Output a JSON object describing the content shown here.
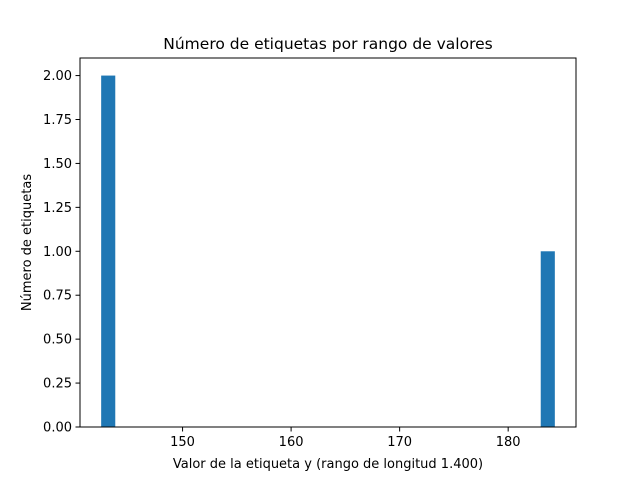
{
  "chart_data": {
    "type": "bar",
    "title": "Número de etiquetas por rango de valores",
    "xlabel": "Valor de la etiqueta y (rango de longitud 1.400)",
    "ylabel": "Número de etiquetas",
    "xlim": [
      140.55,
      186.25
    ],
    "ylim": [
      0,
      2.1
    ],
    "x_ticks": [
      150,
      160,
      170,
      180
    ],
    "x_tick_labels": [
      "150",
      "160",
      "170",
      "180"
    ],
    "y_ticks": [
      0,
      0.25,
      0.5,
      0.75,
      1.0,
      1.25,
      1.5,
      1.75,
      2.0
    ],
    "y_tick_labels": [
      "0.00",
      "0.25",
      "0.50",
      "0.75",
      "1.00",
      "1.25",
      "1.50",
      "1.75",
      "2.00"
    ],
    "bars": [
      {
        "x_start": 142.5,
        "x_end": 143.8,
        "value": 2
      },
      {
        "x_start": 183.0,
        "x_end": 184.3,
        "value": 1
      }
    ],
    "grid": false,
    "bar_color": "#1f77b4"
  }
}
